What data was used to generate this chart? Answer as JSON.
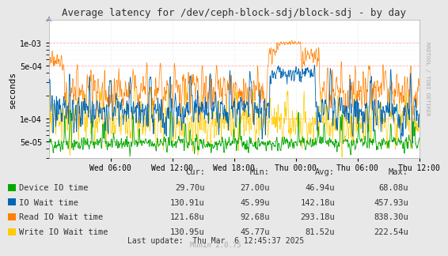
{
  "title": "Average latency for /dev/ceph-block-sdj/block-sdj - by day",
  "ylabel": "seconds",
  "right_label": "RRDTOOL / TOBI OETIKER",
  "bg_color": "#E8E8E8",
  "plot_bg_color": "#FFFFFF",
  "legend": [
    {
      "label": "Device IO time",
      "color": "#00AA00"
    },
    {
      "label": "IO Wait time",
      "color": "#0066B3"
    },
    {
      "label": "Read IO Wait time",
      "color": "#FF8000"
    },
    {
      "label": "Write IO Wait time",
      "color": "#FFCC00"
    }
  ],
  "stats": {
    "headers": [
      "Cur:",
      "Min:",
      "Avg:",
      "Max:"
    ],
    "rows": [
      [
        "Device IO time",
        "29.70u",
        "27.00u",
        "46.94u",
        "68.08u"
      ],
      [
        "IO Wait time",
        "130.91u",
        "45.99u",
        "142.18u",
        "457.93u"
      ],
      [
        "Read IO Wait time",
        "121.68u",
        "92.68u",
        "293.18u",
        "838.30u"
      ],
      [
        "Write IO Wait time",
        "130.95u",
        "45.77u",
        "81.52u",
        "222.54u"
      ]
    ]
  },
  "last_update": "Last update:  Thu Mar  6 12:45:37 2025",
  "munin_version": "Munin 2.0.75",
  "ylim": [
    3e-05,
    0.002
  ],
  "ytick_vals": [
    5e-05,
    0.0001,
    0.0005,
    0.001
  ],
  "ytick_labels": [
    "5e-05",
    "1e-04",
    "5e-04",
    "1e-03"
  ],
  "xtick_labels": [
    "Wed 06:00",
    "Wed 12:00",
    "Wed 18:00",
    "Thu 00:00",
    "Thu 06:00",
    "Thu 12:00"
  ],
  "xtick_positions": [
    0.1667,
    0.3333,
    0.5,
    0.6667,
    0.8333,
    1.0
  ],
  "major_grid_color_x": "#CCCCCC",
  "major_grid_color_y": "#FF9999",
  "minor_grid_color": "#DDDDDD"
}
